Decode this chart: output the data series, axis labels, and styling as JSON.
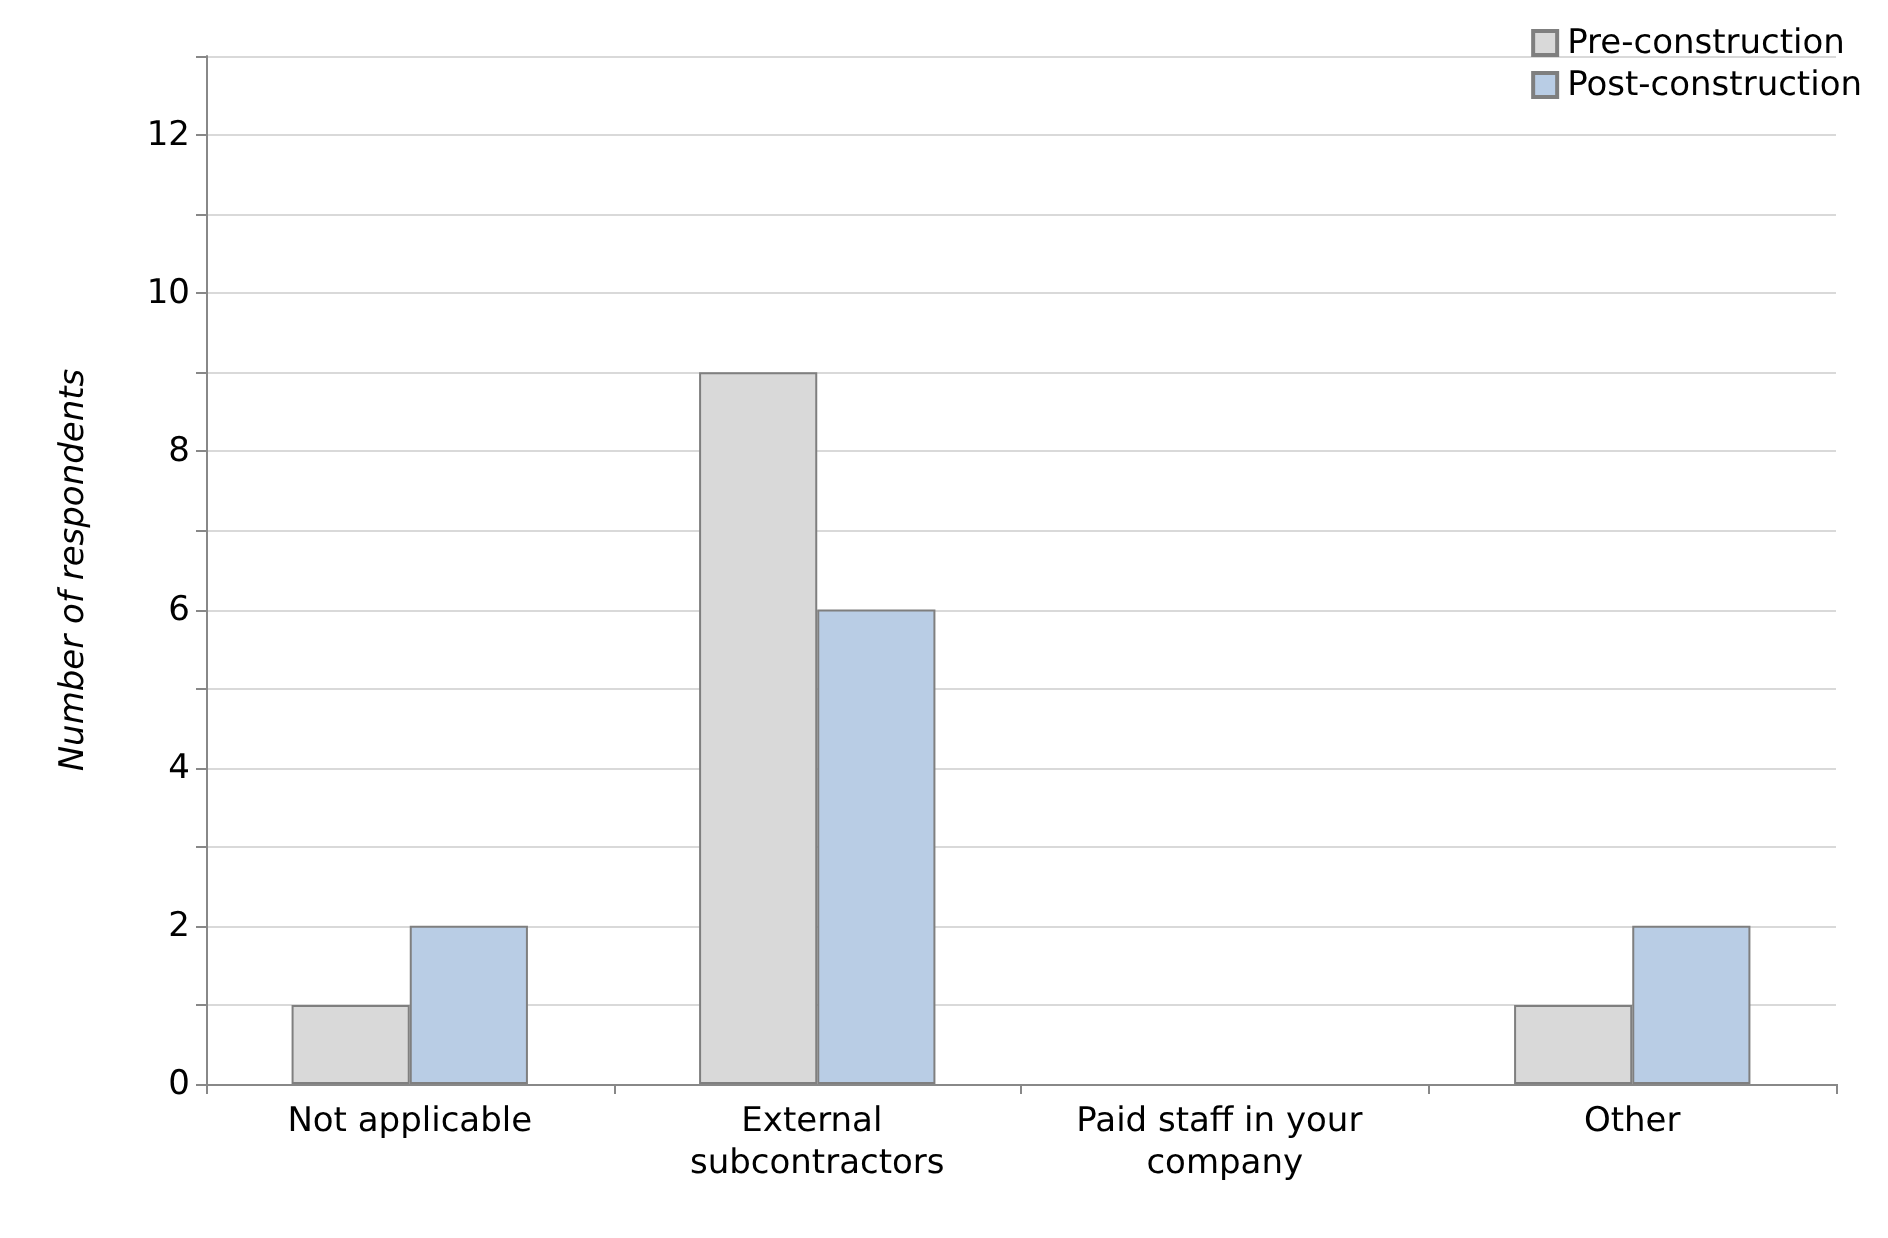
{
  "chart_data": {
    "type": "bar",
    "ylabel": "Number of respondents",
    "categories": [
      "Not applicable",
      "External subcontractors",
      "Paid staff in your company",
      "Other"
    ],
    "series": [
      {
        "name": "Pre-construction",
        "color": "#d9d9d9",
        "values": [
          1,
          9,
          0,
          1
        ]
      },
      {
        "name": "Post-construction",
        "color": "#b9cde5",
        "values": [
          2,
          6,
          0,
          2
        ]
      }
    ],
    "ylim": [
      0,
      13
    ],
    "yticks": [
      0,
      {
        "value": 1,
        "label": null
      },
      2,
      {
        "value": 3,
        "label": null
      },
      4,
      {
        "value": 5,
        "label": null
      },
      6,
      {
        "value": 7,
        "label": null
      },
      8,
      {
        "value": 9,
        "label": null
      },
      10,
      {
        "value": 11,
        "label": null
      },
      12,
      {
        "value": 13,
        "label": null
      }
    ],
    "grid": "y",
    "legend": "top right"
  }
}
